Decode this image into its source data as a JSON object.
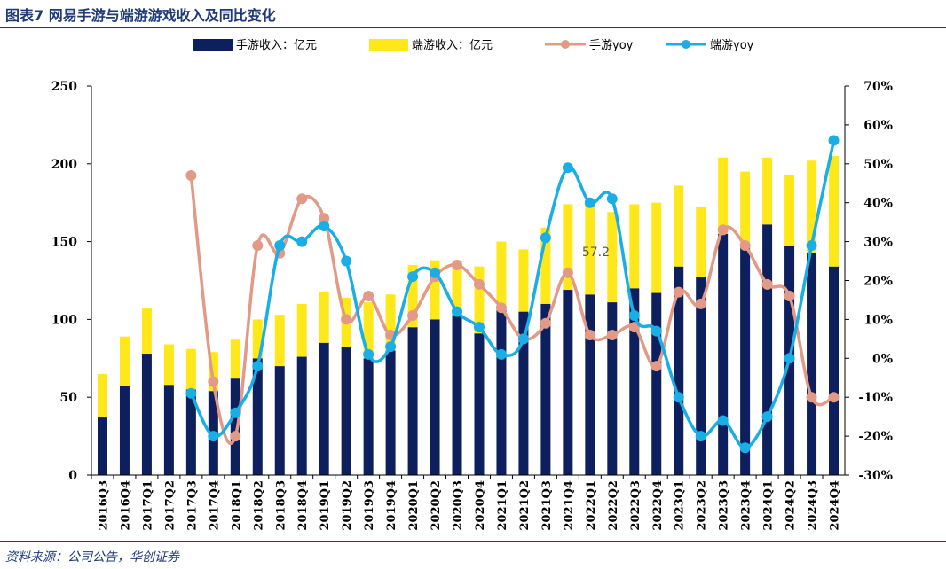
{
  "title": "图表7  网易手游与端游游戏收入及同比变化",
  "source": "资料来源：公司公告，华创证券",
  "colors": {
    "mobile": "#0D1F5C",
    "pc": "#FFE81A",
    "mobile_yoy": "#E29A86",
    "pc_yoy": "#19AEE6",
    "rule": "#1F3A79"
  },
  "chart_data": {
    "type": "bar",
    "categories": [
      "2016Q3",
      "2016Q4",
      "2017Q1",
      "2017Q2",
      "2017Q3",
      "2017Q4",
      "2018Q1",
      "2018Q2",
      "2018Q3",
      "2018Q4",
      "2019Q1",
      "2019Q2",
      "2019Q3",
      "2019Q4",
      "2020Q1",
      "2020Q2",
      "2020Q3",
      "2020Q4",
      "2021Q1",
      "2021Q2",
      "2021Q3",
      "2021Q4",
      "2022Q1",
      "2022Q2",
      "2022Q3",
      "2022Q4",
      "2023Q1",
      "2023Q2",
      "2023Q3",
      "2023Q4",
      "2024Q1",
      "2024Q2",
      "2024Q3",
      "2024Q4"
    ],
    "series": [
      {
        "name": "手游收入：亿元",
        "kind": "bar",
        "axis": "left",
        "values": [
          37,
          57,
          78,
          58,
          55,
          54,
          62,
          75,
          70,
          76,
          85,
          82,
          75,
          80,
          95,
          100,
          103,
          91,
          106,
          105,
          110,
          119,
          116,
          111,
          120,
          117,
          134,
          127,
          155,
          148,
          161,
          147,
          143,
          134
        ]
      },
      {
        "name": "端游收入：亿元",
        "kind": "bar",
        "axis": "left",
        "values": [
          28,
          32,
          29,
          26,
          26,
          25,
          25,
          25,
          33,
          34,
          33,
          32,
          36,
          36,
          40,
          38,
          35,
          43,
          44,
          40,
          49,
          55,
          60,
          58,
          54,
          58,
          52,
          45,
          49,
          47,
          43,
          46,
          59,
          71
        ]
      },
      {
        "name": "手游yoy",
        "kind": "line",
        "axis": "right",
        "values": [
          null,
          null,
          null,
          null,
          47,
          -6,
          -20,
          29,
          27,
          41,
          36,
          10,
          16,
          6,
          11,
          21,
          24,
          19,
          13,
          5,
          9,
          22,
          6,
          6,
          8,
          -2,
          17,
          14,
          33,
          29,
          19,
          16,
          -10,
          -10
        ]
      },
      {
        "name": "端游yoy",
        "kind": "line",
        "axis": "right",
        "values": [
          null,
          null,
          null,
          null,
          -9,
          -20,
          -14,
          -2,
          29,
          30,
          34,
          25,
          1,
          3,
          21,
          22,
          12,
          8,
          1,
          5,
          31,
          49,
          40,
          41,
          11,
          7,
          -10,
          -20,
          -16,
          -23,
          -15,
          0,
          29,
          56
        ]
      }
    ],
    "ylim": [
      0,
      250
    ],
    "yticks": [
      "0",
      "50",
      "100",
      "150",
      "200",
      "250"
    ],
    "y2lim": [
      -30,
      70
    ],
    "y2ticks": [
      "-30%",
      "-20%",
      "-10%",
      "0%",
      "10%",
      "20%",
      "30%",
      "40%",
      "50%",
      "60%",
      "70%"
    ],
    "annotation": {
      "text": "57.2",
      "category": "2021Q4"
    },
    "legend_position": "top"
  }
}
